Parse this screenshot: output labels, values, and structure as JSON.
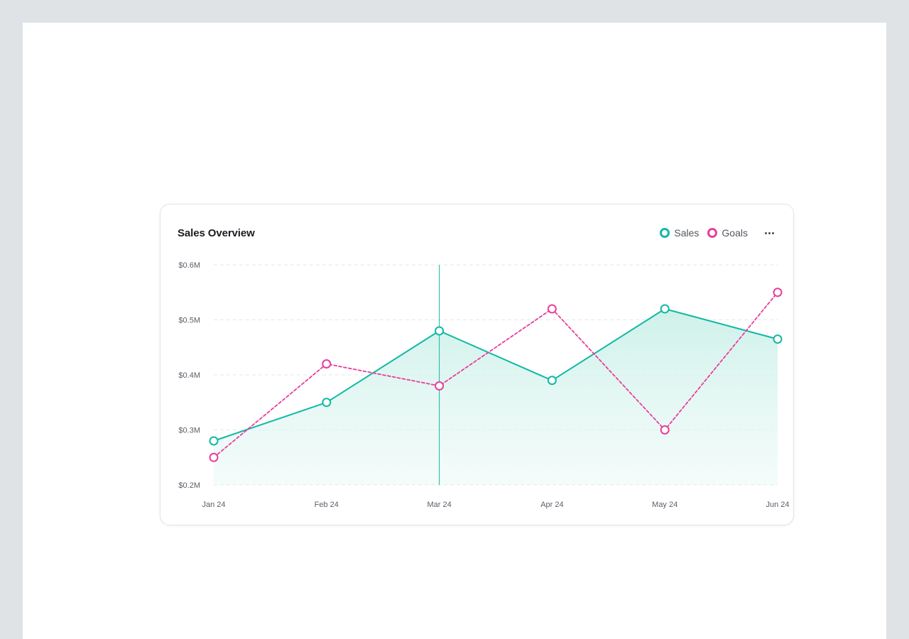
{
  "card": {
    "title": "Sales Overview"
  },
  "legend": [
    {
      "name": "Sales",
      "color": "#12b8a6"
    },
    {
      "name": "Goals",
      "color": "#e83e9c"
    }
  ],
  "icons": {
    "more": "more-horizontal-icon"
  },
  "colors": {
    "sales": "#12b8a6",
    "goals": "#e83e9c",
    "grid": "#e4e7ea",
    "area_top": "#cdf1ea"
  },
  "chart_data": {
    "type": "line",
    "categories": [
      "Jan 24",
      "Feb 24",
      "Mar 24",
      "Apr 24",
      "May 24",
      "Jun 24"
    ],
    "series": [
      {
        "name": "Sales",
        "values": [
          0.28,
          0.35,
          0.48,
          0.39,
          0.52,
          0.465
        ],
        "style": "solid",
        "area": true
      },
      {
        "name": "Goals",
        "values": [
          0.25,
          0.42,
          0.38,
          0.52,
          0.3,
          0.55
        ],
        "style": "dashed",
        "area": false
      }
    ],
    "yticks": [
      "$0.2M",
      "$0.3M",
      "$0.4M",
      "$0.5M",
      "$0.6M"
    ],
    "ytick_values": [
      0.2,
      0.3,
      0.4,
      0.5,
      0.6
    ],
    "ylim": [
      0.2,
      0.6
    ],
    "unit": "$M",
    "grid": "horizontal dashed",
    "legend_position": "top-right",
    "hover_category": "Mar 24"
  }
}
